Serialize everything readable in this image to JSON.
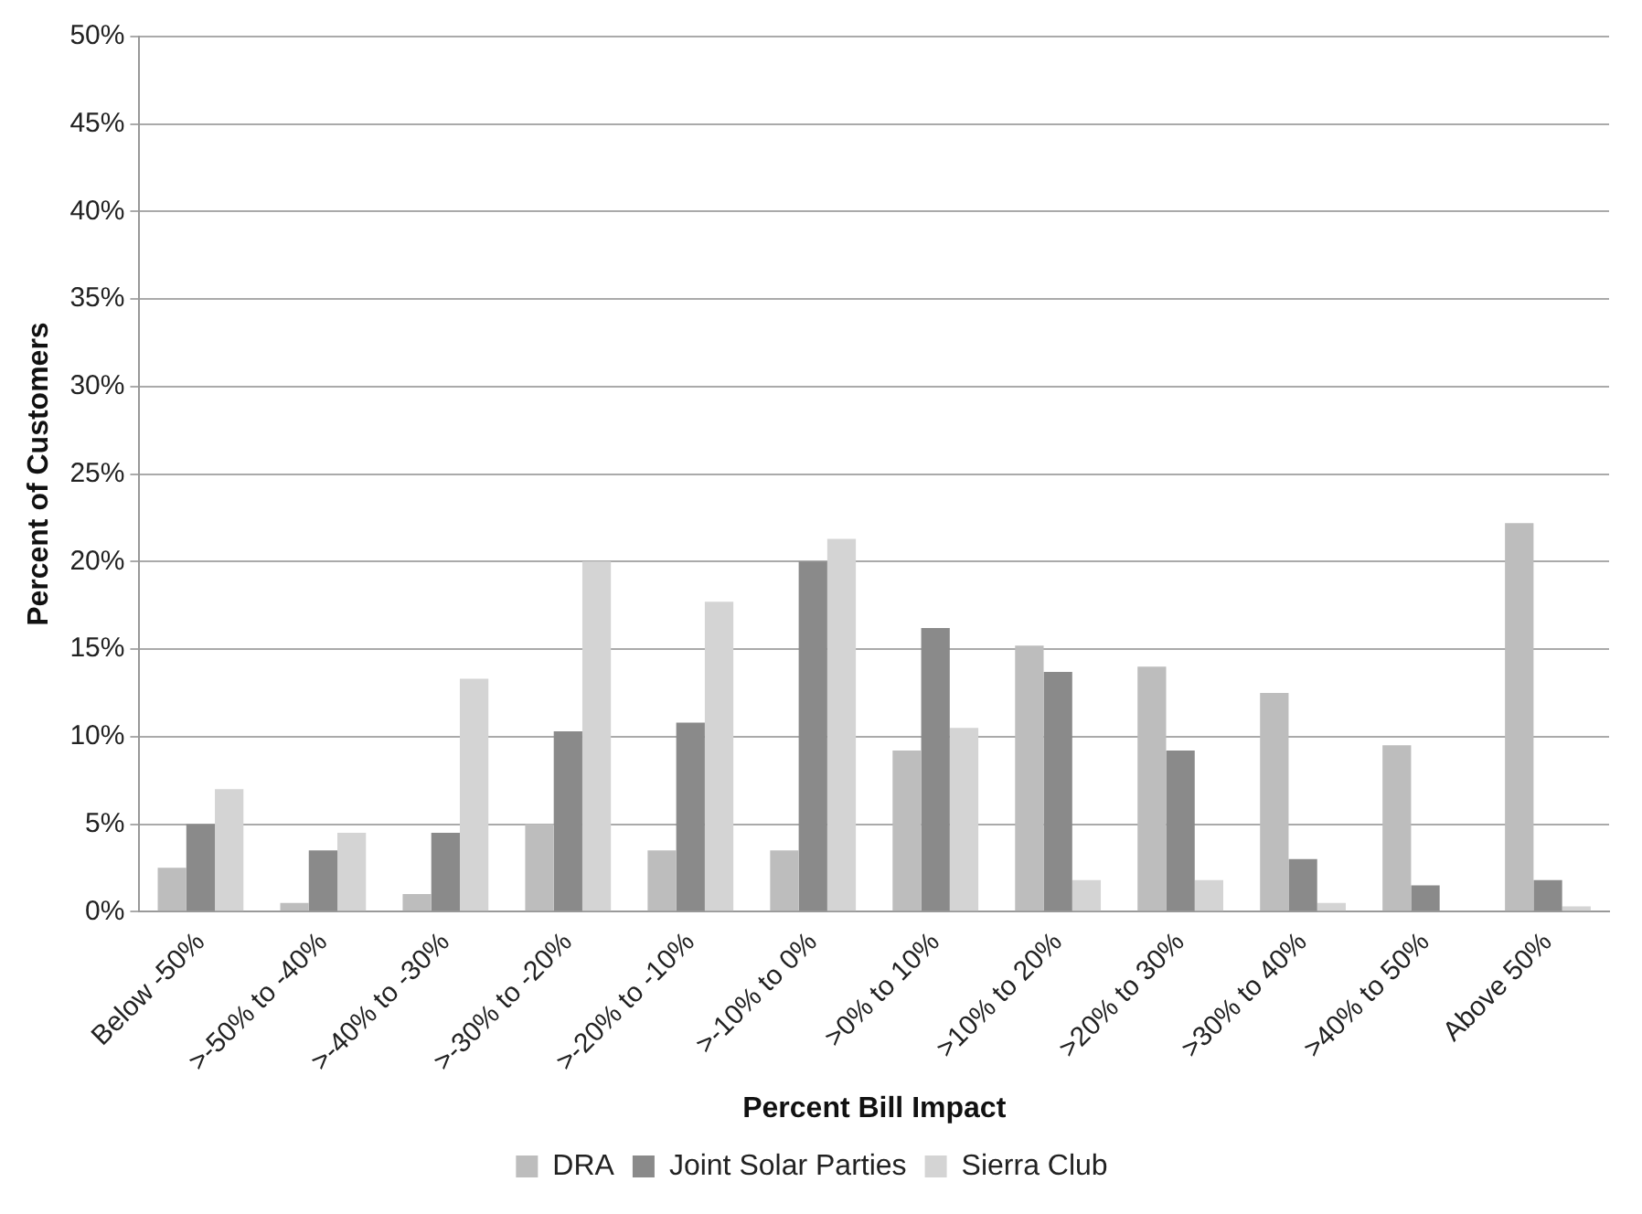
{
  "chart_data": {
    "type": "bar",
    "xlabel": "Percent Bill Impact",
    "ylabel": "Percent of Customers",
    "categories": [
      "Below -50%",
      ">-50% to -40%",
      ">-40% to -30%",
      ">-30% to -20%",
      ">-20% to -10%",
      ">-10% to 0%",
      ">0% to 10%",
      ">10% to 20%",
      ">20% to 30%",
      ">30% to 40%",
      ">40% to 50%",
      "Above 50%"
    ],
    "series": [
      {
        "name": "DRA",
        "color": "#bdbdbd",
        "values": [
          2.5,
          0.5,
          1,
          5,
          3.5,
          3.5,
          9.2,
          15.2,
          14,
          12.5,
          9.5,
          22.2
        ]
      },
      {
        "name": "Joint Solar Parties",
        "color": "#8a8a8a",
        "values": [
          5,
          3.5,
          4.5,
          10.3,
          10.8,
          20,
          16.2,
          13.7,
          9.2,
          3,
          1.5,
          1.8
        ]
      },
      {
        "name": "Sierra Club",
        "color": "#d4d4d4",
        "values": [
          7,
          4.5,
          13.3,
          20,
          17.7,
          21.3,
          10.5,
          1.8,
          1.8,
          0.5,
          0,
          0.3
        ]
      }
    ],
    "ylim": [
      0,
      50
    ],
    "yticks": [
      {
        "value": 0,
        "label": "0%"
      },
      {
        "value": 5,
        "label": "5%"
      },
      {
        "value": 10,
        "label": "10%"
      },
      {
        "value": 15,
        "label": "15%"
      },
      {
        "value": 20,
        "label": "20%"
      },
      {
        "value": 25,
        "label": "25%"
      },
      {
        "value": 30,
        "label": "30%"
      },
      {
        "value": 35,
        "label": "35%"
      },
      {
        "value": 40,
        "label": "40%"
      },
      {
        "value": 45,
        "label": "45%"
      },
      {
        "value": 50,
        "label": "50%"
      }
    ],
    "grid": "y",
    "legend": "bottom"
  }
}
